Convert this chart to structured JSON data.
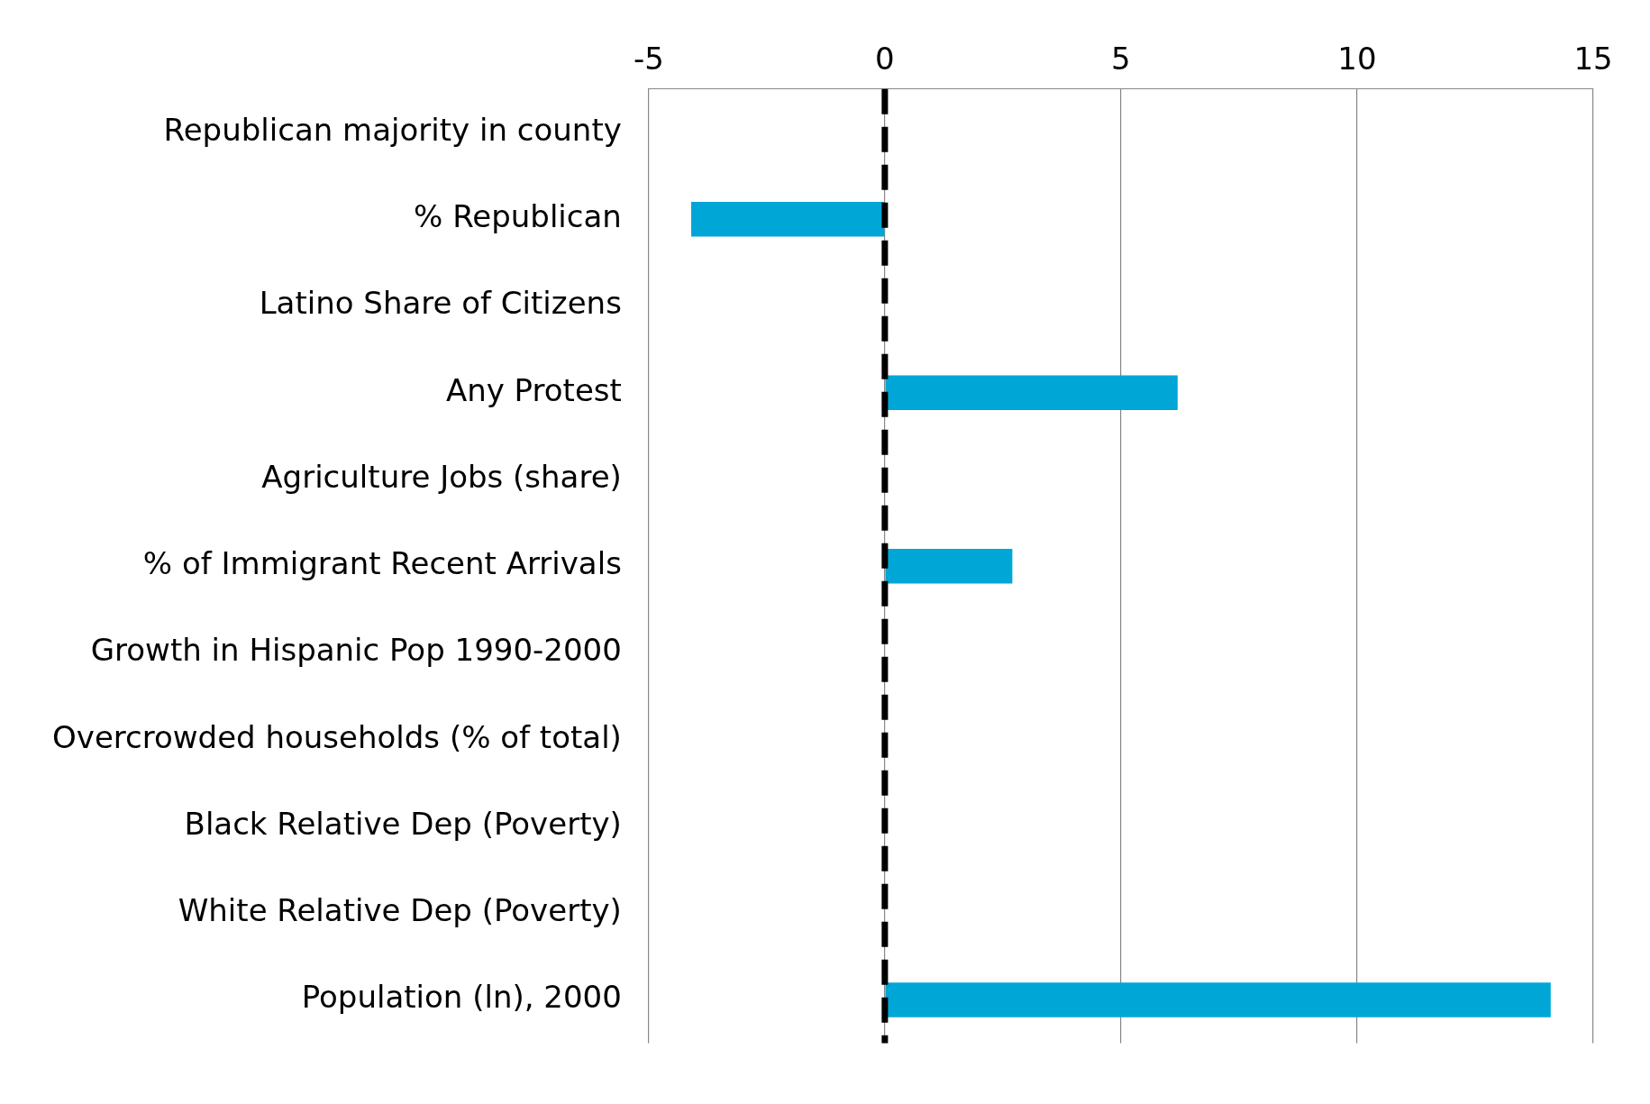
{
  "chart_data": {
    "type": "bar",
    "orientation": "horizontal",
    "categories": [
      "Republican majority in county",
      "% Republican",
      "Latino Share of Citizens",
      "Any Protest",
      "Agriculture Jobs (share)",
      "% of Immigrant Recent Arrivals",
      "Growth in Hispanic Pop 1990-2000",
      "Overcrowded households (% of total)",
      "Black Relative Dep (Poverty)",
      "White Relative Dep (Poverty)",
      "Population (ln), 2000"
    ],
    "values": [
      null,
      -4.1,
      null,
      6.2,
      null,
      2.7,
      null,
      null,
      null,
      null,
      14.1
    ],
    "color": "#00a6d6",
    "xlim": [
      -5,
      15
    ],
    "xticks": [
      -5,
      0,
      5,
      10,
      15
    ],
    "grid": "x",
    "legend": false,
    "ref_lines": [
      {
        "axis": "x",
        "value": 0,
        "color": "#000000",
        "line_style": "dashed"
      }
    ]
  }
}
